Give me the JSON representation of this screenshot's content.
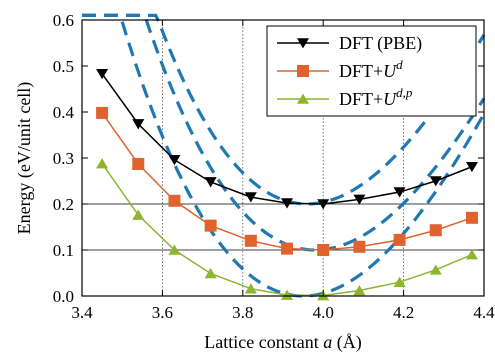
{
  "chart_data": {
    "type": "line",
    "xlabel_prefix": "Lattice constant ",
    "xlabel_var": "a",
    "xlabel_suffix": " (Å)",
    "ylabel": "Energy (eV/unit cell)",
    "xlim": [
      3.4,
      4.4
    ],
    "ylim": [
      0.0,
      0.6
    ],
    "xticks": [
      "3.4",
      "3.6",
      "3.8",
      "4.0",
      "4.2",
      "4.4"
    ],
    "yticks": [
      "0.0",
      "0.1",
      "0.2",
      "0.3",
      "0.4",
      "0.5",
      "0.6"
    ],
    "grid_x": [
      3.6,
      3.8,
      4.0,
      4.2
    ],
    "grid_y": [
      0.1,
      0.2
    ],
    "legend_position": "top-right",
    "series": [
      {
        "name": "DFT (PBE)",
        "name_parts": {
          "base": "DFT (PBE)",
          "sup": ""
        },
        "color": "#000000",
        "marker": "triangle-down",
        "x": [
          3.45,
          3.54,
          3.63,
          3.72,
          3.82,
          3.91,
          4.0,
          4.09,
          4.19,
          4.28,
          4.37
        ],
        "y": [
          0.483,
          0.374,
          0.296,
          0.248,
          0.215,
          0.202,
          0.2,
          0.21,
          0.226,
          0.25,
          0.281
        ]
      },
      {
        "name": "DFT+U^d",
        "name_parts": {
          "base": "DFT+",
          "var": "U",
          "sup": "d"
        },
        "color": "#e0622d",
        "marker": "square",
        "x": [
          3.45,
          3.54,
          3.63,
          3.72,
          3.82,
          3.91,
          4.0,
          4.09,
          4.19,
          4.28,
          4.37
        ],
        "y": [
          0.398,
          0.287,
          0.207,
          0.153,
          0.12,
          0.103,
          0.1,
          0.107,
          0.122,
          0.143,
          0.17
        ]
      },
      {
        "name": "DFT+U^{d,p}",
        "name_parts": {
          "base": "DFT+",
          "var": "U",
          "sup": "d,p"
        },
        "color": "#8db52f",
        "marker": "triangle-up",
        "x": [
          3.45,
          3.54,
          3.63,
          3.72,
          3.82,
          3.91,
          4.0,
          4.09,
          4.19,
          4.28,
          4.37
        ],
        "y": [
          0.288,
          0.176,
          0.1,
          0.049,
          0.016,
          0.002,
          0.001,
          0.012,
          0.03,
          0.057,
          0.09
        ]
      }
    ],
    "fit_curves": {
      "color": "#1f77b4",
      "style": "dashed",
      "x_range": [
        3.4,
        4.4
      ],
      "curves": [
        {
          "min_x": 3.96,
          "min_y": 0.2,
          "a": 2.45,
          "b": 1.25
        },
        {
          "min_x": 3.98,
          "min_y": 0.1,
          "a": 2.35,
          "b": 1.15
        },
        {
          "min_x": 3.95,
          "min_y": 0.0,
          "a": 2.45,
          "b": 1.1
        }
      ]
    }
  }
}
